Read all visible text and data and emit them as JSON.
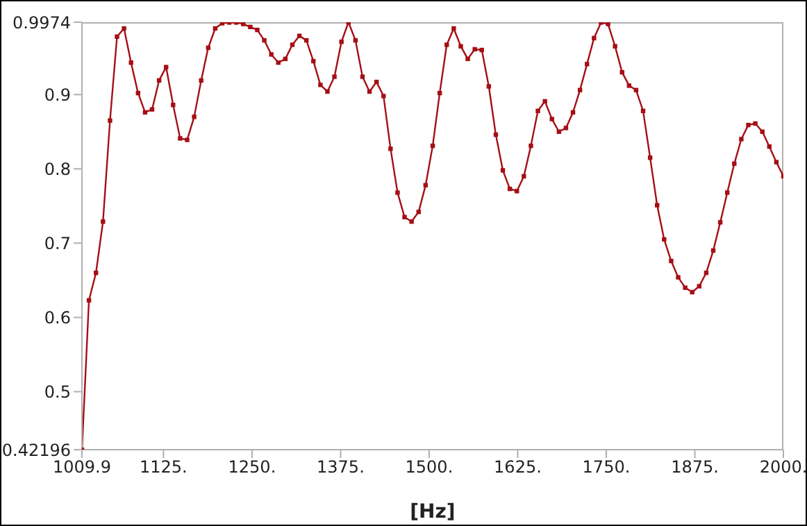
{
  "chart_data": {
    "type": "line",
    "xlabel": "[Hz]",
    "xlim": [
      1009.9,
      2000
    ],
    "xticks": [
      1009.9,
      {
        "value": 1125,
        "label": "1125."
      },
      {
        "value": 1250,
        "label": "1250."
      },
      {
        "value": 1375,
        "label": "1375."
      },
      {
        "value": 1500,
        "label": "1500."
      },
      {
        "value": 1625,
        "label": "1625."
      },
      {
        "value": 1750,
        "label": "1750."
      },
      {
        "value": 1875,
        "label": "1875."
      },
      {
        "value": 2000,
        "label": "2000."
      }
    ],
    "ylim": [
      0.42196,
      0.9974
    ],
    "yticks": [
      0.42196,
      0.5,
      0.6,
      0.7,
      0.8,
      0.9,
      0.9974
    ],
    "grid": false,
    "marker": "square",
    "line_style": "solid",
    "x": [
      1009.9,
      1019.8,
      1029.7,
      1039.6,
      1049.5,
      1059.4,
      1069.3,
      1079.2,
      1089.1,
      1099.0,
      1108.9,
      1118.8,
      1128.7,
      1138.6,
      1148.5,
      1158.4,
      1168.3,
      1178.2,
      1188.1,
      1198.0,
      1207.9,
      1217.8,
      1227.7,
      1237.6,
      1247.5,
      1257.4,
      1267.3,
      1277.2,
      1287.1,
      1297.0,
      1306.9,
      1316.8,
      1326.7,
      1336.6,
      1346.5,
      1356.4,
      1366.3,
      1376.2,
      1386.1,
      1396.0,
      1405.9,
      1415.8,
      1425.7,
      1435.6,
      1445.5,
      1455.4,
      1465.3,
      1475.2,
      1485.1,
      1495.0,
      1505.0,
      1514.9,
      1524.8,
      1534.7,
      1544.6,
      1554.5,
      1564.4,
      1574.3,
      1584.2,
      1594.1,
      1604.0,
      1613.9,
      1623.8,
      1633.7,
      1643.6,
      1653.5,
      1663.4,
      1673.3,
      1683.2,
      1693.1,
      1703.0,
      1712.9,
      1722.8,
      1732.7,
      1742.6,
      1752.5,
      1762.4,
      1772.3,
      1782.2,
      1792.1,
      1802.0,
      1811.9,
      1821.8,
      1831.7,
      1841.6,
      1851.5,
      1861.4,
      1871.3,
      1881.2,
      1891.1,
      1901.0,
      1910.9,
      1920.8,
      1930.7,
      1940.6,
      1950.5,
      1960.4,
      1970.3,
      1980.2,
      1990.1,
      2000.0
    ],
    "series": [
      {
        "color": "#a50f15",
        "values": [
          0.42196,
          0.623,
          0.66,
          0.729,
          0.865,
          0.978,
          0.989,
          0.943,
          0.902,
          0.876,
          0.88,
          0.919,
          0.937,
          0.886,
          0.841,
          0.839,
          0.87,
          0.919,
          0.963,
          0.989,
          0.996,
          0.997,
          0.997,
          0.995,
          0.991,
          0.987,
          0.973,
          0.954,
          0.943,
          0.948,
          0.967,
          0.979,
          0.973,
          0.945,
          0.913,
          0.904,
          0.924,
          0.971,
          0.9974,
          0.973,
          0.924,
          0.904,
          0.917,
          0.898,
          0.827,
          0.768,
          0.735,
          0.729,
          0.742,
          0.778,
          0.831,
          0.902,
          0.967,
          0.989,
          0.965,
          0.948,
          0.961,
          0.96,
          0.911,
          0.846,
          0.798,
          0.773,
          0.77,
          0.79,
          0.831,
          0.878,
          0.891,
          0.867,
          0.85,
          0.855,
          0.876,
          0.906,
          0.941,
          0.976,
          0.997,
          0.995,
          0.965,
          0.93,
          0.912,
          0.906,
          0.878,
          0.815,
          0.751,
          0.705,
          0.676,
          0.654,
          0.64,
          0.634,
          0.642,
          0.66,
          0.69,
          0.728,
          0.768,
          0.807,
          0.84,
          0.859,
          0.861,
          0.85,
          0.83,
          0.809,
          0.79
        ]
      }
    ]
  }
}
